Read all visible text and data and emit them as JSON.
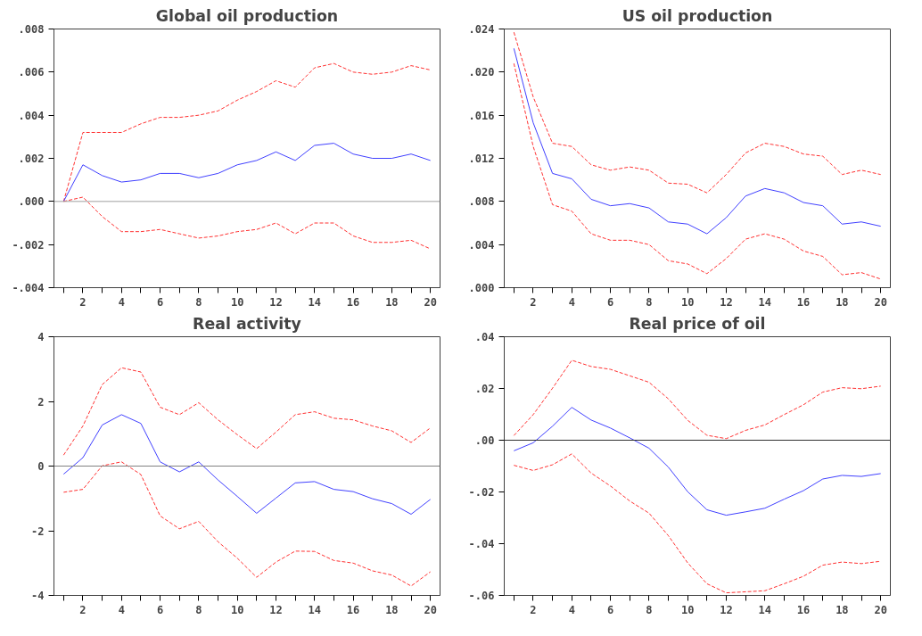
{
  "chart_data": [
    {
      "type": "line",
      "title": "Global oil production",
      "xlim": [
        0.5,
        20.5
      ],
      "ylim": [
        -0.004,
        0.008
      ],
      "xticks": [
        {
          "value": 1,
          "label": null
        },
        2,
        {
          "value": 3,
          "label": null
        },
        4,
        {
          "value": 5,
          "label": null
        },
        6,
        {
          "value": 7,
          "label": null
        },
        8,
        {
          "value": 9,
          "label": null
        },
        10,
        {
          "value": 11,
          "label": null
        },
        12,
        {
          "value": 13,
          "label": null
        },
        14,
        {
          "value": 15,
          "label": null
        },
        16,
        {
          "value": 17,
          "label": null
        },
        18,
        {
          "value": 19,
          "label": null
        },
        20
      ],
      "yticks": [
        {
          "value": -0.004,
          "label": "-.004"
        },
        {
          "value": -0.002,
          "label": "-.002"
        },
        {
          "value": 0.0,
          "label": ".000"
        },
        {
          "value": 0.002,
          "label": ".002"
        },
        {
          "value": 0.004,
          "label": ".004"
        },
        {
          "value": 0.006,
          "label": ".006"
        },
        {
          "value": 0.008,
          "label": ".008"
        }
      ],
      "x": [
        1,
        2,
        3,
        4,
        5,
        6,
        7,
        8,
        9,
        10,
        11,
        12,
        13,
        14,
        15,
        16,
        17,
        18,
        19,
        20
      ],
      "ref_lines": [
        {
          "axis": "y",
          "value": 0,
          "color": "#a0a0a0"
        }
      ],
      "series": [
        {
          "color": "#ff3030",
          "line_style": "dashed",
          "values": [
            0,
            0.0032,
            0.0032,
            0.0032,
            0.0036,
            0.0039,
            0.0039,
            0.004,
            0.0042,
            0.0047,
            0.0051,
            0.0056,
            0.0053,
            0.0062,
            0.0064,
            0.006,
            0.0059,
            0.006,
            0.0063,
            0.0061
          ]
        },
        {
          "color": "#4040ff",
          "line_style": "solid",
          "values": [
            0,
            0.0017,
            0.0012,
            0.0009,
            0.001,
            0.0013,
            0.0013,
            0.0011,
            0.0013,
            0.0017,
            0.0019,
            0.0023,
            0.0019,
            0.0026,
            0.0027,
            0.0022,
            0.002,
            0.002,
            0.0022,
            0.0019
          ]
        },
        {
          "color": "#ff3030",
          "line_style": "dashed",
          "values": [
            0,
            0.0002,
            -0.0007,
            -0.0014,
            -0.0014,
            -0.0013,
            -0.0015,
            -0.0017,
            -0.0016,
            -0.0014,
            -0.0013,
            -0.001,
            -0.0015,
            -0.001,
            -0.001,
            -0.0016,
            -0.0019,
            -0.0019,
            -0.0018,
            -0.0022
          ]
        }
      ]
    },
    {
      "type": "line",
      "title": "US oil production",
      "xlim": [
        0.5,
        20.5
      ],
      "ylim": [
        0.0,
        0.024
      ],
      "xticks": [
        {
          "value": 1,
          "label": null
        },
        2,
        {
          "value": 3,
          "label": null
        },
        4,
        {
          "value": 5,
          "label": null
        },
        6,
        {
          "value": 7,
          "label": null
        },
        8,
        {
          "value": 9,
          "label": null
        },
        10,
        {
          "value": 11,
          "label": null
        },
        12,
        {
          "value": 13,
          "label": null
        },
        14,
        {
          "value": 15,
          "label": null
        },
        16,
        {
          "value": 17,
          "label": null
        },
        18,
        {
          "value": 19,
          "label": null
        },
        20
      ],
      "yticks": [
        {
          "value": 0.0,
          "label": ".000"
        },
        {
          "value": 0.004,
          "label": ".004"
        },
        {
          "value": 0.008,
          "label": ".008"
        },
        {
          "value": 0.012,
          "label": ".012"
        },
        {
          "value": 0.016,
          "label": ".016"
        },
        {
          "value": 0.02,
          "label": ".020"
        },
        {
          "value": 0.024,
          "label": ".024"
        }
      ],
      "x": [
        1,
        2,
        3,
        4,
        5,
        6,
        7,
        8,
        9,
        10,
        11,
        12,
        13,
        14,
        15,
        16,
        17,
        18,
        19,
        20
      ],
      "series": [
        {
          "color": "#ff3030",
          "line_style": "dashed",
          "values": [
            0.0237,
            0.0177,
            0.0134,
            0.0131,
            0.0114,
            0.0109,
            0.0112,
            0.0109,
            0.0097,
            0.0096,
            0.0088,
            0.0105,
            0.0125,
            0.0134,
            0.0131,
            0.0124,
            0.0122,
            0.0105,
            0.0109,
            0.0105
          ]
        },
        {
          "color": "#4040ff",
          "line_style": "solid",
          "values": [
            0.0222,
            0.0153,
            0.0106,
            0.0101,
            0.0082,
            0.0076,
            0.0078,
            0.0074,
            0.0061,
            0.0059,
            0.005,
            0.0065,
            0.0085,
            0.0092,
            0.0088,
            0.0079,
            0.0076,
            0.0059,
            0.0061,
            0.0057
          ]
        },
        {
          "color": "#ff3030",
          "line_style": "dashed",
          "values": [
            0.0208,
            0.0131,
            0.0077,
            0.0071,
            0.005,
            0.0044,
            0.0044,
            0.004,
            0.0025,
            0.0022,
            0.0013,
            0.0027,
            0.0045,
            0.005,
            0.0045,
            0.0034,
            0.0029,
            0.0012,
            0.0014,
            0.0008
          ]
        }
      ]
    },
    {
      "type": "line",
      "title": "Real activity",
      "xlim": [
        0.5,
        20.5
      ],
      "ylim": [
        -4,
        4
      ],
      "xticks": [
        {
          "value": 1,
          "label": null
        },
        2,
        {
          "value": 3,
          "label": null
        },
        4,
        {
          "value": 5,
          "label": null
        },
        6,
        {
          "value": 7,
          "label": null
        },
        8,
        {
          "value": 9,
          "label": null
        },
        10,
        {
          "value": 11,
          "label": null
        },
        12,
        {
          "value": 13,
          "label": null
        },
        14,
        {
          "value": 15,
          "label": null
        },
        16,
        {
          "value": 17,
          "label": null
        },
        18,
        {
          "value": 19,
          "label": null
        },
        20
      ],
      "yticks": [
        -4,
        -2,
        0,
        2,
        4
      ],
      "x": [
        1,
        2,
        3,
        4,
        5,
        6,
        7,
        8,
        9,
        10,
        11,
        12,
        13,
        14,
        15,
        16,
        17,
        18,
        19,
        20
      ],
      "ref_lines": [
        {
          "axis": "y",
          "value": 0,
          "color": "#808080"
        }
      ],
      "series": [
        {
          "color": "#ff3030",
          "line_style": "dashed",
          "values": [
            0.34,
            1.24,
            2.52,
            3.04,
            2.91,
            1.82,
            1.59,
            1.96,
            1.43,
            0.97,
            0.54,
            1.05,
            1.59,
            1.68,
            1.48,
            1.43,
            1.24,
            1.09,
            0.73,
            1.18
          ]
        },
        {
          "color": "#4040ff",
          "line_style": "solid",
          "values": [
            -0.25,
            0.26,
            1.27,
            1.59,
            1.32,
            0.13,
            -0.18,
            0.13,
            -0.43,
            -0.94,
            -1.46,
            -0.99,
            -0.52,
            -0.48,
            -0.72,
            -0.79,
            -1.01,
            -1.16,
            -1.49,
            -1.03
          ]
        },
        {
          "color": "#ff3030",
          "line_style": "dashed",
          "values": [
            -0.81,
            -0.72,
            0.01,
            0.13,
            -0.26,
            -1.54,
            -1.94,
            -1.71,
            -2.34,
            -2.85,
            -3.44,
            -2.97,
            -2.63,
            -2.64,
            -2.92,
            -3.0,
            -3.24,
            -3.37,
            -3.71,
            -3.27
          ]
        }
      ]
    },
    {
      "type": "line",
      "title": "Real price of oil",
      "xlim": [
        0.5,
        20.5
      ],
      "ylim": [
        -0.06,
        0.04
      ],
      "xticks": [
        {
          "value": 1,
          "label": null
        },
        2,
        {
          "value": 3,
          "label": null
        },
        4,
        {
          "value": 5,
          "label": null
        },
        6,
        {
          "value": 7,
          "label": null
        },
        8,
        {
          "value": 9,
          "label": null
        },
        10,
        {
          "value": 11,
          "label": null
        },
        12,
        {
          "value": 13,
          "label": null
        },
        14,
        {
          "value": 15,
          "label": null
        },
        16,
        {
          "value": 17,
          "label": null
        },
        18,
        {
          "value": 19,
          "label": null
        },
        20
      ],
      "yticks": [
        {
          "value": -0.06,
          "label": "-.06"
        },
        {
          "value": -0.04,
          "label": "-.04"
        },
        {
          "value": -0.02,
          "label": "-.02"
        },
        {
          "value": 0.0,
          "label": ".00"
        },
        {
          "value": 0.02,
          "label": ".02"
        },
        {
          "value": 0.04,
          "label": ".04"
        }
      ],
      "x": [
        1,
        2,
        3,
        4,
        5,
        6,
        7,
        8,
        9,
        10,
        11,
        12,
        13,
        14,
        15,
        16,
        17,
        18,
        19,
        20
      ],
      "ref_lines": [
        {
          "axis": "y",
          "value": 0,
          "color": "#303030"
        }
      ],
      "series": [
        {
          "color": "#ff3030",
          "line_style": "dashed",
          "values": [
            0.0018,
            0.0099,
            0.0201,
            0.0309,
            0.0285,
            0.0274,
            0.0249,
            0.0224,
            0.016,
            0.0077,
            0.0019,
            0.0006,
            0.0038,
            0.0059,
            0.0099,
            0.0137,
            0.0186,
            0.0203,
            0.0199,
            0.0209
          ]
        },
        {
          "color": "#4040ff",
          "line_style": "solid",
          "values": [
            -0.0041,
            -0.001,
            0.0054,
            0.0127,
            0.0078,
            0.0047,
            0.0009,
            -0.0031,
            -0.0104,
            -0.0199,
            -0.0269,
            -0.029,
            -0.0277,
            -0.0263,
            -0.0228,
            -0.0195,
            -0.015,
            -0.0136,
            -0.014,
            -0.0129
          ]
        },
        {
          "color": "#ff3030",
          "line_style": "dashed",
          "values": [
            -0.0097,
            -0.0117,
            -0.0095,
            -0.0053,
            -0.0127,
            -0.0177,
            -0.0235,
            -0.0282,
            -0.0369,
            -0.0474,
            -0.0555,
            -0.059,
            -0.0586,
            -0.0582,
            -0.0555,
            -0.0526,
            -0.0483,
            -0.0471,
            -0.0477,
            -0.0468
          ]
        }
      ]
    }
  ]
}
